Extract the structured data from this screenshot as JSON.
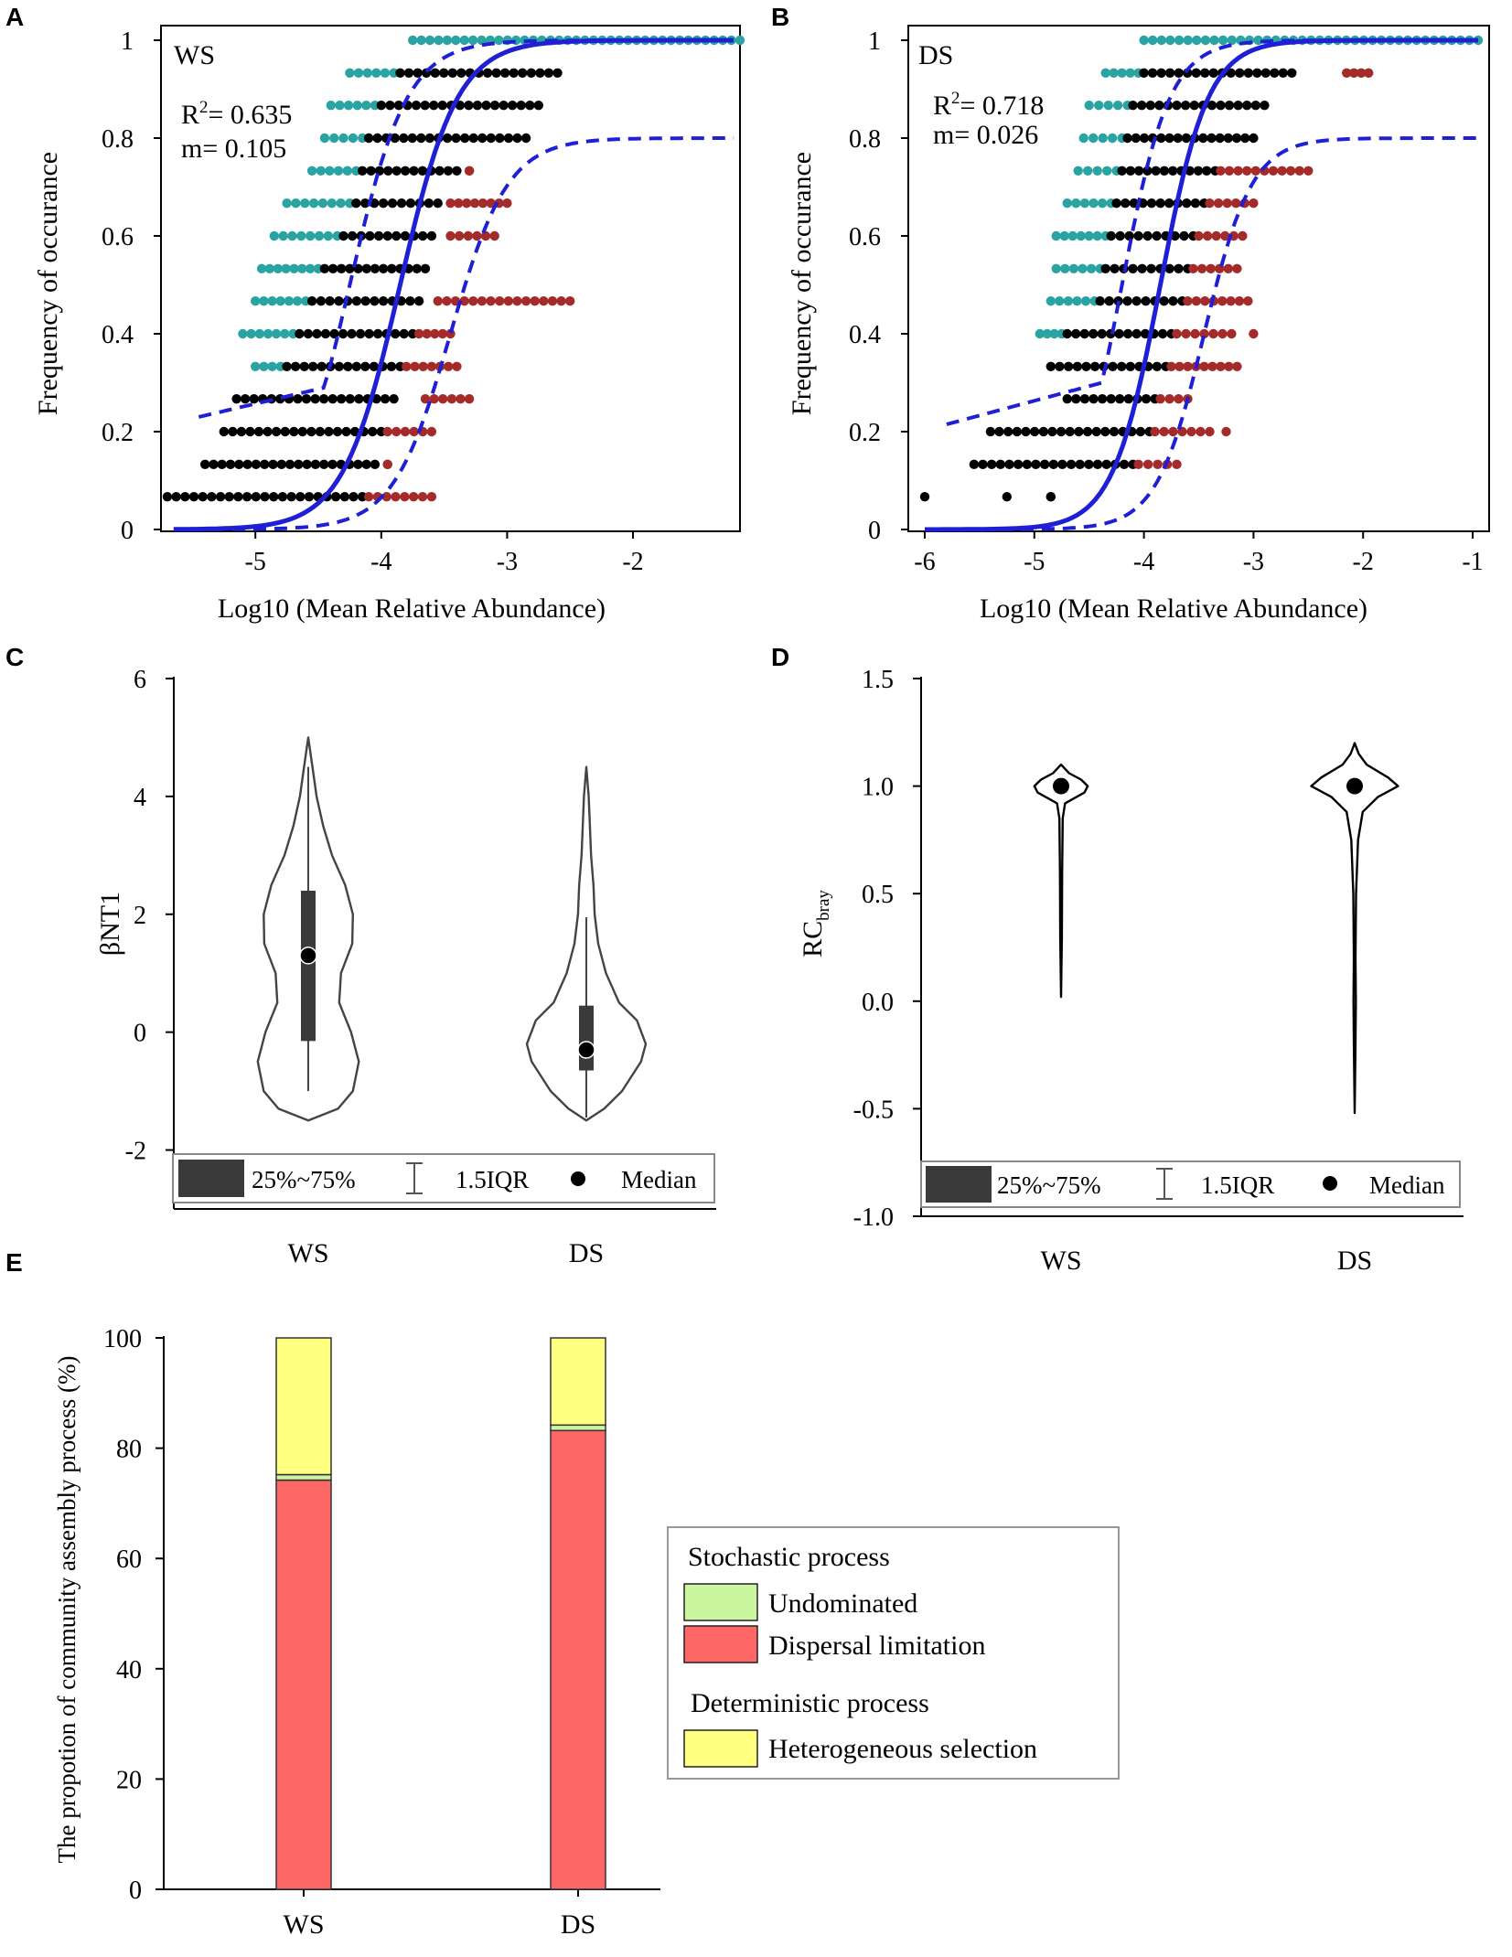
{
  "colors": {
    "blue": "#1f1fd6",
    "teal": "#2aa3a3",
    "red": "#a52a2a",
    "black": "#000000",
    "box_dark": "#3a3a3a",
    "green": "#ccf5a0",
    "salmon": "#ff6666",
    "yellow": "#ffff80"
  },
  "chart_data": [
    {
      "id": "A",
      "type": "scatter",
      "panel_label": "A",
      "title": "WS",
      "xlabel": "Log10 (Mean Relative  Abundance)",
      "ylabel": "Frequency of occurance",
      "xlim": [
        -5.75,
        -1.15
      ],
      "ylim": [
        0,
        1
      ],
      "xticks": [
        -5,
        -4,
        -3,
        -2
      ],
      "xtick_labels": [
        "-5",
        "-4",
        "-3",
        "-2"
      ],
      "yticks": [
        0,
        0.2,
        0.4,
        0.6,
        0.8,
        1
      ],
      "ytick_labels": [
        "0",
        "0.2",
        "0.4",
        "0.6",
        "0.8",
        "1"
      ],
      "r2_prefix": "R",
      "r2_sup": "2",
      "r2_value": "= 0.635",
      "m_label": "m= 0.105",
      "fit_center": -3.85,
      "fit_slope": 4.4,
      "upper_center": -4.25,
      "lower_center": -3.45,
      "lower_asymptote": 0.8,
      "band_start_x": -5.45,
      "band_start_y": 0.23,
      "fit_start_x": -5.65,
      "fit_end_x": -1.2,
      "point_rows": [
        {
          "y": 1.0,
          "teal": [
            -3.75,
            -1.15
          ],
          "black": [],
          "red": []
        },
        {
          "y": 0.933,
          "teal": [
            -4.25,
            -3.9
          ],
          "black": [
            -3.85,
            -2.6
          ],
          "red": []
        },
        {
          "y": 0.867,
          "teal": [
            -4.4,
            -4.05
          ],
          "black": [
            -4.0,
            -2.75
          ],
          "red": []
        },
        {
          "y": 0.8,
          "teal": [
            -4.45,
            -4.15
          ],
          "black": [
            -4.1,
            -2.85
          ],
          "red": []
        },
        {
          "y": 0.733,
          "teal": [
            -4.55,
            -4.2
          ],
          "black": [
            -4.15,
            -3.4
          ],
          "red": [
            -3.3,
            -3.3
          ]
        },
        {
          "y": 0.667,
          "teal": [
            -4.75,
            -4.25
          ],
          "black": [
            -4.2,
            -3.55
          ],
          "red": [
            -3.45,
            -3.0
          ]
        },
        {
          "y": 0.6,
          "teal": [
            -4.85,
            -4.35
          ],
          "black": [
            -4.3,
            -3.6
          ],
          "red": [
            -3.45,
            -3.1
          ]
        },
        {
          "y": 0.533,
          "teal": [
            -4.95,
            -4.5
          ],
          "black": [
            -4.45,
            -3.65
          ],
          "red": []
        },
        {
          "y": 0.467,
          "teal": [
            -5.0,
            -4.6
          ],
          "black": [
            -4.55,
            -3.7
          ],
          "red": [
            -3.55,
            -2.5
          ]
        },
        {
          "y": 0.4,
          "teal": [
            -5.1,
            -4.7
          ],
          "black": [
            -4.65,
            -3.75
          ],
          "red": [
            -3.7,
            -3.45
          ]
        },
        {
          "y": 0.333,
          "teal": [
            -5.0,
            -4.8
          ],
          "black": [
            -4.75,
            -3.85
          ],
          "red": [
            -3.8,
            -3.4
          ]
        },
        {
          "y": 0.267,
          "teal": [],
          "black": [
            -5.15,
            -3.9
          ],
          "red": [
            -3.65,
            -3.3
          ]
        },
        {
          "y": 0.2,
          "teal": [],
          "black": [
            -5.25,
            -4.0
          ],
          "red": [
            -3.95,
            -3.6
          ]
        },
        {
          "y": 0.133,
          "teal": [],
          "black": [
            -5.4,
            -4.05
          ],
          "red": [
            -3.95,
            -3.95
          ]
        },
        {
          "y": 0.067,
          "teal": [],
          "black": [
            -5.7,
            -4.15
          ],
          "red": [
            -4.1,
            -3.6
          ]
        }
      ]
    },
    {
      "id": "B",
      "type": "scatter",
      "panel_label": "B",
      "title": "DS",
      "xlabel": "Log10 (Mean Relative  Abundance)",
      "ylabel": "Frequency of occurance",
      "xlim": [
        -6.15,
        -0.85
      ],
      "ylim": [
        0,
        1
      ],
      "xticks": [
        -6,
        -5,
        -4,
        -3,
        -2,
        -1
      ],
      "xtick_labels": [
        "-6",
        "-5",
        "-4",
        "-3",
        "-2",
        "-1"
      ],
      "yticks": [
        0,
        0.2,
        0.4,
        0.6,
        0.8,
        1
      ],
      "ytick_labels": [
        "0",
        "0.2",
        "0.4",
        "0.6",
        "0.8",
        "1"
      ],
      "r2_prefix": "R",
      "r2_sup": "2",
      "r2_value": "= 0.718",
      "m_label": "m= 0.026",
      "fit_center": -3.85,
      "fit_slope": 4.6,
      "upper_center": -4.2,
      "lower_center": -3.45,
      "lower_asymptote": 0.8,
      "band_start_x": -5.8,
      "band_start_y": 0.215,
      "fit_start_x": -6.0,
      "fit_end_x": -0.95,
      "point_rows": [
        {
          "y": 1.0,
          "teal": [
            -4.0,
            -0.95
          ],
          "black": [],
          "red": []
        },
        {
          "y": 0.933,
          "teal": [
            -4.35,
            -4.05
          ],
          "black": [
            -4.0,
            -2.65
          ],
          "red": [
            -2.15,
            -1.95
          ]
        },
        {
          "y": 0.867,
          "teal": [
            -4.5,
            -4.15
          ],
          "black": [
            -4.1,
            -2.9
          ],
          "red": []
        },
        {
          "y": 0.8,
          "teal": [
            -4.55,
            -4.2
          ],
          "black": [
            -4.15,
            -3.0
          ],
          "red": []
        },
        {
          "y": 0.733,
          "teal": [
            -4.6,
            -4.25
          ],
          "black": [
            -4.2,
            -3.35
          ],
          "red": [
            -3.3,
            -2.5
          ]
        },
        {
          "y": 0.667,
          "teal": [
            -4.7,
            -4.3
          ],
          "black": [
            -4.25,
            -3.45
          ],
          "red": [
            -3.4,
            -3.0
          ]
        },
        {
          "y": 0.6,
          "teal": [
            -4.8,
            -4.35
          ],
          "black": [
            -4.3,
            -3.55
          ],
          "red": [
            -3.5,
            -3.1
          ]
        },
        {
          "y": 0.533,
          "teal": [
            -4.8,
            -4.4
          ],
          "black": [
            -4.35,
            -3.6
          ],
          "red": [
            -3.55,
            -3.15
          ]
        },
        {
          "y": 0.467,
          "teal": [
            -4.85,
            -4.45
          ],
          "black": [
            -4.4,
            -3.65
          ],
          "red": [
            -3.6,
            -3.05
          ]
        },
        {
          "y": 0.4,
          "teal": [
            -4.95,
            -4.75
          ],
          "black": [
            -4.7,
            -3.75
          ],
          "red": [
            -3.7,
            -3.2
          ]
        },
        {
          "y": 0.333,
          "teal": [],
          "black": [
            -4.85,
            -3.8
          ],
          "red": [
            -3.75,
            -3.15
          ]
        },
        {
          "y": 0.267,
          "teal": [],
          "black": [
            -4.7,
            -3.9
          ],
          "red": [
            -3.85,
            -3.6
          ]
        },
        {
          "y": 0.2,
          "teal": [],
          "black": [
            -5.4,
            -3.95
          ],
          "red": [
            -3.9,
            -3.4
          ]
        },
        {
          "y": 0.133,
          "teal": [],
          "black": [
            -5.55,
            -4.1
          ],
          "red": [
            -4.05,
            -3.7
          ]
        },
        {
          "y": 0.067,
          "teal": [],
          "black": [
            -4.85,
            -4.85
          ],
          "red": []
        }
      ],
      "extra_points": [
        {
          "x": -6.0,
          "y": 0.067,
          "color": "black"
        },
        {
          "x": -5.25,
          "y": 0.067,
          "color": "black"
        },
        {
          "x": -3.0,
          "y": 0.4,
          "color": "red"
        },
        {
          "x": -3.25,
          "y": 0.2,
          "color": "red"
        }
      ]
    },
    {
      "id": "C",
      "type": "violin",
      "panel_label": "C",
      "ylabel": "βNT1",
      "categories": [
        "WS",
        "DS"
      ],
      "ylim": [
        -3,
        6
      ],
      "yticks": [
        -2,
        0,
        2,
        4,
        6
      ],
      "ytick_labels": [
        "-2",
        "0",
        "2",
        "4",
        "6"
      ],
      "series": [
        {
          "name": "WS",
          "min": -1.0,
          "q1": -0.15,
          "median": 1.3,
          "q3": 2.4,
          "max": 4.5,
          "shape": [
            [
              -1.5,
              0.0
            ],
            [
              -1.3,
              0.5
            ],
            [
              -1.0,
              0.75
            ],
            [
              -0.5,
              0.85
            ],
            [
              0.0,
              0.72
            ],
            [
              0.5,
              0.52
            ],
            [
              1.0,
              0.55
            ],
            [
              1.5,
              0.74
            ],
            [
              2.0,
              0.75
            ],
            [
              2.5,
              0.62
            ],
            [
              3.0,
              0.4
            ],
            [
              3.5,
              0.25
            ],
            [
              4.0,
              0.14
            ],
            [
              4.5,
              0.07
            ],
            [
              5.0,
              0.0
            ]
          ]
        },
        {
          "name": "DS",
          "min": -1.45,
          "q1": -0.65,
          "median": -0.3,
          "q3": 0.45,
          "max": 1.95,
          "shape": [
            [
              -1.5,
              0.0
            ],
            [
              -1.3,
              0.3
            ],
            [
              -1.0,
              0.6
            ],
            [
              -0.5,
              0.92
            ],
            [
              -0.2,
              1.0
            ],
            [
              0.2,
              0.85
            ],
            [
              0.5,
              0.55
            ],
            [
              1.0,
              0.33
            ],
            [
              1.5,
              0.2
            ],
            [
              2.0,
              0.14
            ],
            [
              2.5,
              0.12
            ],
            [
              3.0,
              0.08
            ],
            [
              3.5,
              0.06
            ],
            [
              4.0,
              0.04
            ],
            [
              4.5,
              0.0
            ]
          ]
        }
      ],
      "legend": {
        "box_label": "25%~75%",
        "whisker_label": "1.5IQR",
        "median_label": "Median"
      }
    },
    {
      "id": "D",
      "type": "violin",
      "panel_label": "D",
      "ylabel": "RC",
      "ylabel_sub": "bray",
      "categories": [
        "WS",
        "DS"
      ],
      "ylim": [
        -1.0,
        1.5
      ],
      "yticks": [
        -1.0,
        -0.5,
        0.0,
        0.5,
        1.0,
        1.5
      ],
      "ytick_labels": [
        "-1.0",
        "-0.5",
        "0.0",
        "0.5",
        "1.0",
        "1.5"
      ],
      "series": [
        {
          "name": "WS",
          "median": 1.0,
          "shape": [
            [
              0.02,
              0.0
            ],
            [
              0.3,
              0.012
            ],
            [
              0.6,
              0.016
            ],
            [
              0.85,
              0.025
            ],
            [
              0.92,
              0.06
            ],
            [
              0.97,
              0.35
            ],
            [
              1.0,
              0.4
            ],
            [
              1.03,
              0.3
            ],
            [
              1.06,
              0.12
            ],
            [
              1.1,
              0.0
            ]
          ]
        },
        {
          "name": "DS",
          "median": 1.0,
          "shape": [
            [
              -0.52,
              0.0
            ],
            [
              -0.2,
              0.012
            ],
            [
              0.0,
              0.018
            ],
            [
              0.2,
              0.012
            ],
            [
              0.5,
              0.02
            ],
            [
              0.75,
              0.05
            ],
            [
              0.88,
              0.12
            ],
            [
              0.95,
              0.35
            ],
            [
              1.0,
              0.65
            ],
            [
              1.04,
              0.5
            ],
            [
              1.1,
              0.18
            ],
            [
              1.15,
              0.06
            ],
            [
              1.2,
              0.0
            ]
          ]
        }
      ],
      "legend": {
        "box_label": "25%~75%",
        "whisker_label": "1.5IQR",
        "median_label": "Median"
      }
    },
    {
      "id": "E",
      "type": "bar",
      "stacked": true,
      "panel_label": "E",
      "ylabel": "The propotion of community assembly process (%)",
      "categories": [
        "WS",
        "DS"
      ],
      "ylim": [
        0,
        100
      ],
      "yticks": [
        0,
        20,
        40,
        60,
        80,
        100
      ],
      "ytick_labels": [
        "0",
        "20",
        "40",
        "60",
        "80",
        "100"
      ],
      "series": [
        {
          "name": "Dispersal limitation",
          "values": [
            74.2,
            83.2
          ],
          "color_key": "salmon"
        },
        {
          "name": "Undominated",
          "values": [
            1.0,
            1.0
          ],
          "color_key": "green"
        },
        {
          "name": "Heterogeneous selection",
          "values": [
            24.8,
            15.8
          ],
          "color_key": "yellow"
        }
      ],
      "legend": {
        "groups": [
          {
            "title": "Stochastic process",
            "items": [
              "Undominated",
              "Dispersal limitation"
            ]
          },
          {
            "title": "Deterministic process",
            "items": [
              "Heterogeneous selection"
            ]
          }
        ]
      }
    }
  ]
}
